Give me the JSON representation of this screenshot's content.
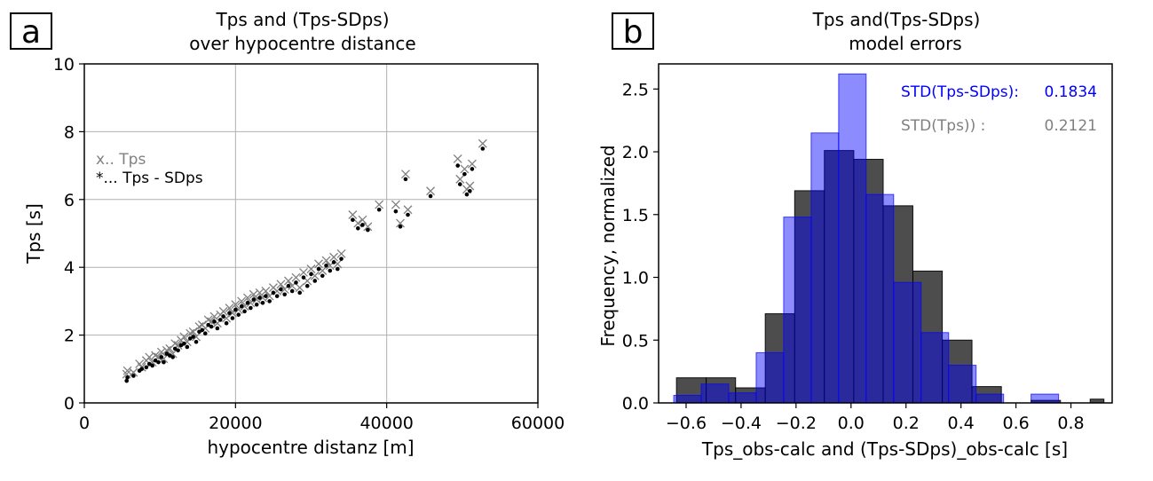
{
  "chart_data": [
    {
      "panel_label": "a",
      "type": "scatter",
      "title": "Tps and (Tps-SDps)",
      "subtitle": "over hypocentre distance",
      "xlabel": "hypocentre distanz [m]",
      "ylabel": "Tps [s]",
      "xlim": [
        0,
        60000
      ],
      "ylim": [
        0,
        10
      ],
      "xticks": [
        0,
        20000,
        40000,
        60000
      ],
      "yticks": [
        0,
        2,
        4,
        6,
        8,
        10
      ],
      "grid": true,
      "legend_placement": "upper-left",
      "series": [
        {
          "name": "x.. Tps",
          "marker": "x",
          "color": "#808080",
          "points": [
            [
              5600,
              0.85
            ],
            [
              5700,
              0.95
            ],
            [
              6500,
              0.9
            ],
            [
              7300,
              1.15
            ],
            [
              7600,
              1.05
            ],
            [
              8200,
              1.25
            ],
            [
              8600,
              1.35
            ],
            [
              9000,
              1.2
            ],
            [
              9400,
              1.4
            ],
            [
              9800,
              1.35
            ],
            [
              10200,
              1.5
            ],
            [
              10500,
              1.3
            ],
            [
              10900,
              1.55
            ],
            [
              11300,
              1.6
            ],
            [
              11700,
              1.45
            ],
            [
              12000,
              1.75
            ],
            [
              12400,
              1.7
            ],
            [
              12800,
              1.85
            ],
            [
              13200,
              1.95
            ],
            [
              13600,
              1.8
            ],
            [
              14000,
              2.05
            ],
            [
              14400,
              2.1
            ],
            [
              14800,
              1.95
            ],
            [
              15200,
              2.25
            ],
            [
              15600,
              2.3
            ],
            [
              16000,
              2.2
            ],
            [
              16400,
              2.45
            ],
            [
              16800,
              2.4
            ],
            [
              17200,
              2.55
            ],
            [
              17600,
              2.35
            ],
            [
              18000,
              2.6
            ],
            [
              18400,
              2.7
            ],
            [
              18800,
              2.5
            ],
            [
              19200,
              2.8
            ],
            [
              19600,
              2.65
            ],
            [
              20000,
              2.9
            ],
            [
              20400,
              2.75
            ],
            [
              20800,
              3.0
            ],
            [
              21200,
              2.85
            ],
            [
              21600,
              3.1
            ],
            [
              22000,
              2.95
            ],
            [
              22400,
              3.2
            ],
            [
              22800,
              3.05
            ],
            [
              23200,
              3.25
            ],
            [
              23600,
              3.1
            ],
            [
              24000,
              3.3
            ],
            [
              24500,
              3.15
            ],
            [
              25000,
              3.4
            ],
            [
              25500,
              3.3
            ],
            [
              26000,
              3.5
            ],
            [
              26500,
              3.35
            ],
            [
              27000,
              3.6
            ],
            [
              27500,
              3.45
            ],
            [
              28000,
              3.7
            ],
            [
              28500,
              3.4
            ],
            [
              29000,
              3.85
            ],
            [
              29500,
              3.6
            ],
            [
              30000,
              3.95
            ],
            [
              30500,
              3.75
            ],
            [
              31000,
              4.1
            ],
            [
              31500,
              3.9
            ],
            [
              32000,
              4.2
            ],
            [
              32500,
              4.05
            ],
            [
              33000,
              4.3
            ],
            [
              33500,
              4.1
            ],
            [
              34000,
              4.4
            ],
            [
              35500,
              5.55
            ],
            [
              36200,
              5.3
            ],
            [
              36800,
              5.4
            ],
            [
              37500,
              5.2
            ],
            [
              39000,
              5.85
            ],
            [
              41200,
              5.85
            ],
            [
              41800,
              5.3
            ],
            [
              42500,
              6.75
            ],
            [
              42800,
              5.7
            ],
            [
              45800,
              6.25
            ],
            [
              49400,
              7.2
            ],
            [
              49700,
              6.6
            ],
            [
              50300,
              6.9
            ],
            [
              50600,
              6.3
            ],
            [
              51000,
              6.4
            ],
            [
              51300,
              7.05
            ],
            [
              52700,
              7.65
            ]
          ]
        },
        {
          "name": "*... Tps - SDps",
          "marker": "dot",
          "color": "#000000",
          "points": [
            [
              5600,
              0.65
            ],
            [
              5700,
              0.75
            ],
            [
              6500,
              0.8
            ],
            [
              7300,
              0.95
            ],
            [
              7600,
              1.0
            ],
            [
              8200,
              1.05
            ],
            [
              8600,
              1.15
            ],
            [
              9000,
              1.1
            ],
            [
              9400,
              1.25
            ],
            [
              9800,
              1.2
            ],
            [
              10200,
              1.35
            ],
            [
              10500,
              1.2
            ],
            [
              10900,
              1.45
            ],
            [
              11300,
              1.4
            ],
            [
              11700,
              1.35
            ],
            [
              12000,
              1.6
            ],
            [
              12400,
              1.55
            ],
            [
              12800,
              1.7
            ],
            [
              13200,
              1.75
            ],
            [
              13600,
              1.65
            ],
            [
              14000,
              1.9
            ],
            [
              14400,
              1.95
            ],
            [
              14800,
              1.8
            ],
            [
              15200,
              2.1
            ],
            [
              15600,
              2.15
            ],
            [
              16000,
              2.05
            ],
            [
              16400,
              2.3
            ],
            [
              16800,
              2.25
            ],
            [
              17200,
              2.4
            ],
            [
              17600,
              2.2
            ],
            [
              18000,
              2.45
            ],
            [
              18400,
              2.55
            ],
            [
              18800,
              2.35
            ],
            [
              19200,
              2.65
            ],
            [
              19600,
              2.5
            ],
            [
              20000,
              2.75
            ],
            [
              20400,
              2.6
            ],
            [
              20800,
              2.85
            ],
            [
              21200,
              2.7
            ],
            [
              21600,
              2.95
            ],
            [
              22000,
              2.8
            ],
            [
              22400,
              3.05
            ],
            [
              22800,
              2.9
            ],
            [
              23200,
              3.1
            ],
            [
              23600,
              2.95
            ],
            [
              24000,
              3.15
            ],
            [
              24500,
              3.0
            ],
            [
              25000,
              3.25
            ],
            [
              25500,
              3.15
            ],
            [
              26000,
              3.35
            ],
            [
              26500,
              3.2
            ],
            [
              27000,
              3.45
            ],
            [
              27500,
              3.3
            ],
            [
              28000,
              3.55
            ],
            [
              28500,
              3.25
            ],
            [
              29000,
              3.7
            ],
            [
              29500,
              3.45
            ],
            [
              30000,
              3.8
            ],
            [
              30500,
              3.6
            ],
            [
              31000,
              3.95
            ],
            [
              31500,
              3.75
            ],
            [
              32000,
              4.05
            ],
            [
              32500,
              3.9
            ],
            [
              33000,
              4.15
            ],
            [
              33500,
              3.95
            ],
            [
              34000,
              4.25
            ],
            [
              35500,
              5.4
            ],
            [
              36200,
              5.15
            ],
            [
              36800,
              5.25
            ],
            [
              37500,
              5.1
            ],
            [
              39000,
              5.7
            ],
            [
              41200,
              5.65
            ],
            [
              41800,
              5.2
            ],
            [
              42500,
              6.6
            ],
            [
              42800,
              5.55
            ],
            [
              45800,
              6.1
            ],
            [
              49400,
              7.0
            ],
            [
              49700,
              6.45
            ],
            [
              50300,
              6.75
            ],
            [
              50600,
              6.15
            ],
            [
              51000,
              6.25
            ],
            [
              51300,
              6.9
            ],
            [
              52700,
              7.5
            ]
          ]
        }
      ]
    },
    {
      "panel_label": "b",
      "type": "histogram",
      "title": "Tps and(Tps-SDps)",
      "subtitle": "model errors",
      "xlabel": "Tps_obs-calc and (Tps-SDps)_obs-calc [s]",
      "ylabel": "Frequency, normalized",
      "xlim": [
        -0.7,
        0.95
      ],
      "ylim": [
        0,
        2.7
      ],
      "xticks": [
        -0.6,
        -0.4,
        -0.2,
        0.0,
        0.2,
        0.4,
        0.6,
        0.8
      ],
      "xtick_labels": [
        "−0.6",
        "−0.4",
        "−0.2",
        "0.0",
        "0.2",
        "0.4",
        "0.6",
        "0.8"
      ],
      "yticks": [
        0.0,
        0.5,
        1.0,
        1.5,
        2.0,
        2.5
      ],
      "ytick_labels": [
        "0.0",
        "0.5",
        "1.0",
        "1.5",
        "2.0",
        "2.5"
      ],
      "grid": false,
      "annotations": [
        {
          "label": "STD(Tps-SDps):",
          "value": "0.1834",
          "color": "#0000ff"
        },
        {
          "label": "STD(Tps))  :",
          "value": "0.2121",
          "color": "#808080"
        }
      ],
      "series": [
        {
          "name": "Tps",
          "color": "#3a3a3a",
          "opacity": 0.9,
          "bins": [
            [
              -0.635,
              -0.527,
              0.2
            ],
            [
              -0.527,
              -0.42,
              0.2
            ],
            [
              -0.42,
              -0.312,
              0.12
            ],
            [
              -0.312,
              -0.205,
              0.71
            ],
            [
              -0.205,
              -0.097,
              1.69
            ],
            [
              -0.097,
              0.01,
              2.01
            ],
            [
              0.01,
              0.117,
              1.94
            ],
            [
              0.117,
              0.225,
              1.57
            ],
            [
              0.225,
              0.332,
              1.05
            ],
            [
              0.332,
              0.44,
              0.5
            ],
            [
              0.44,
              0.547,
              0.13
            ],
            [
              0.547,
              0.655,
              0.0
            ],
            [
              0.655,
              0.762,
              0.02
            ],
            [
              0.762,
              0.87,
              0.0
            ],
            [
              0.87,
              0.92,
              0.03
            ]
          ]
        },
        {
          "name": "Tps-SDps",
          "color": "#0000ff",
          "opacity": 0.45,
          "bins": [
            [
              -0.645,
              -0.545,
              0.06
            ],
            [
              -0.545,
              -0.445,
              0.15
            ],
            [
              -0.445,
              -0.345,
              0.08
            ],
            [
              -0.345,
              -0.245,
              0.4
            ],
            [
              -0.245,
              -0.145,
              1.48
            ],
            [
              -0.145,
              -0.045,
              2.15
            ],
            [
              -0.045,
              0.055,
              2.62
            ],
            [
              0.055,
              0.155,
              1.66
            ],
            [
              0.155,
              0.255,
              0.96
            ],
            [
              0.255,
              0.355,
              0.56
            ],
            [
              0.355,
              0.455,
              0.3
            ],
            [
              0.455,
              0.555,
              0.07
            ],
            [
              0.555,
              0.655,
              0.0
            ],
            [
              0.655,
              0.755,
              0.07
            ]
          ]
        }
      ]
    }
  ]
}
